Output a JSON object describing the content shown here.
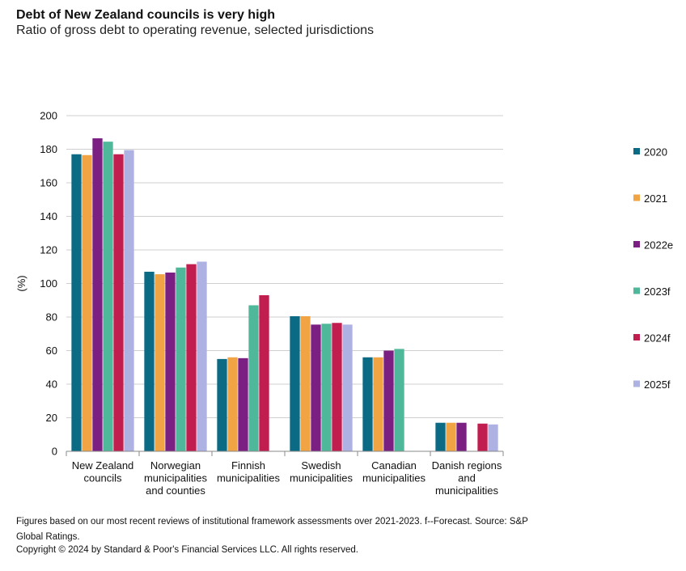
{
  "chart_data": {
    "type": "bar",
    "title": "Debt of New Zealand councils is very high",
    "subtitle": "Ratio of gross debt to operating revenue, selected jurisdictions",
    "ylabel": "(%)",
    "xlabel": "",
    "ylim": [
      0,
      200
    ],
    "yticks": [
      0,
      20,
      40,
      60,
      80,
      100,
      120,
      140,
      160,
      180,
      200
    ],
    "grid": true,
    "legend_position": "right",
    "categories": [
      "New Zealand councils",
      "Norwegian municipalities and counties",
      "Finnish municipalities",
      "Swedish municipalities",
      "Canadian municipalities",
      "Danish regions and municipalities"
    ],
    "category_lines": [
      [
        "New Zealand",
        "councils"
      ],
      [
        "Norwegian",
        "municipalities",
        "and counties"
      ],
      [
        "Finnish",
        "municipalities"
      ],
      [
        "Swedish",
        "municipalities"
      ],
      [
        "Canadian",
        "municipalities"
      ],
      [
        "Danish regions",
        "and",
        "municipalities"
      ]
    ],
    "series": [
      {
        "name": "2020",
        "color": "#0b6b85",
        "values": [
          177,
          107,
          55,
          80.5,
          56,
          17
        ]
      },
      {
        "name": "2021",
        "color": "#f0a443",
        "values": [
          176.5,
          105.5,
          56,
          80.5,
          56,
          17
        ]
      },
      {
        "name": "2022e",
        "color": "#7b1f82",
        "values": [
          186.5,
          106.5,
          55.5,
          75.5,
          60,
          17
        ]
      },
      {
        "name": "2023f",
        "color": "#4fb89a",
        "values": [
          184.5,
          109.5,
          87,
          76,
          61,
          null
        ]
      },
      {
        "name": "2024f",
        "color": "#c21d4f",
        "values": [
          177,
          111.5,
          93,
          76.5,
          null,
          16.5
        ]
      },
      {
        "name": "2025f",
        "color": "#adb2e2",
        "values": [
          179.5,
          113,
          null,
          75.5,
          null,
          16
        ]
      }
    ]
  },
  "footnote": {
    "text": "Figures based on our most recent reviews of institutional framework assessments over 2021-2023. f--Forecast. Source: S&P Global Ratings.",
    "copyright": "Copyright © 2024 by Standard & Poor's Financial Services LLC. All rights reserved."
  }
}
